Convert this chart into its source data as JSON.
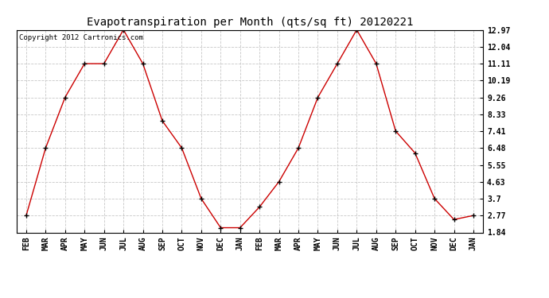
{
  "title": "Evapotranspiration per Month (qts/sq ft) 20120221",
  "copyright_text": "Copyright 2012 Cartronics.com",
  "x_labels": [
    "FEB",
    "MAR",
    "APR",
    "MAY",
    "JUN",
    "JUL",
    "AUG",
    "SEP",
    "OCT",
    "NOV",
    "DEC",
    "JAN",
    "FEB",
    "MAR",
    "APR",
    "MAY",
    "JUN",
    "JUL",
    "AUG",
    "SEP",
    "OCT",
    "NOV",
    "DEC",
    "JAN"
  ],
  "y_values": [
    2.77,
    6.48,
    9.26,
    11.11,
    11.11,
    12.97,
    11.11,
    7.97,
    6.48,
    3.7,
    2.1,
    2.1,
    3.24,
    4.63,
    6.48,
    9.26,
    11.11,
    12.97,
    11.11,
    7.41,
    6.2,
    3.7,
    2.55,
    2.77
  ],
  "y_ticks": [
    1.84,
    2.77,
    3.7,
    4.63,
    5.55,
    6.48,
    7.41,
    8.33,
    9.26,
    10.19,
    11.11,
    12.04,
    12.97
  ],
  "line_color": "#cc0000",
  "marker": "+",
  "marker_size": 4,
  "marker_linewidth": 1.0,
  "line_width": 1.0,
  "background_color": "#ffffff",
  "grid_color": "#c8c8c8",
  "ylim_min": 1.84,
  "ylim_max": 12.97,
  "title_fontsize": 10,
  "tick_fontsize": 7,
  "copyright_fontsize": 6.5
}
